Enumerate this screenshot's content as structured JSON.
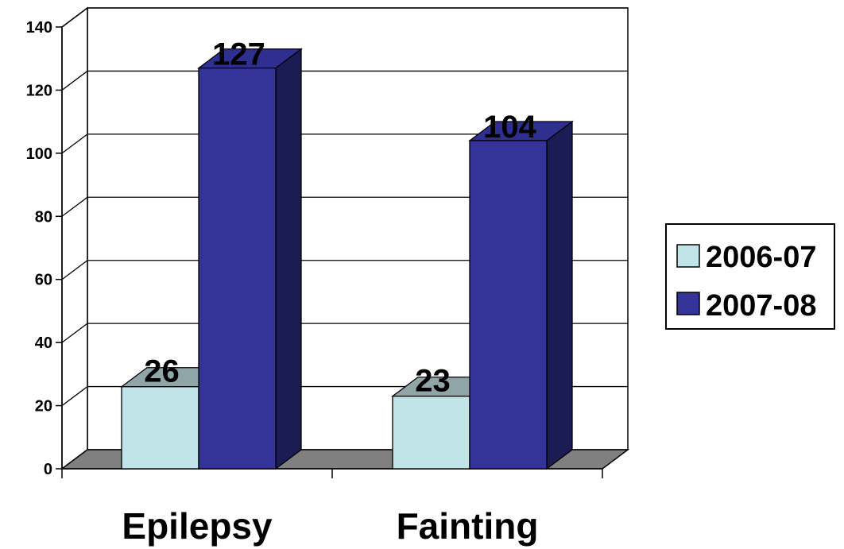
{
  "chart_data": {
    "type": "bar",
    "categories": [
      "Epilepsy",
      "Fainting"
    ],
    "series": [
      {
        "name": "2006-07",
        "values": [
          26,
          23
        ],
        "color": "#c0e4e8"
      },
      {
        "name": "2007-08",
        "values": [
          127,
          104
        ],
        "color": "#333399"
      }
    ],
    "y_ticks": [
      "0",
      "20",
      "40",
      "60",
      "80",
      "100",
      "120",
      "140"
    ],
    "ylim": [
      0,
      140
    ],
    "grid": true,
    "legend": "right",
    "style": "3d-column"
  }
}
